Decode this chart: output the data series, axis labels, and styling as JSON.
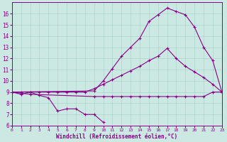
{
  "background_color": "#cce8e2",
  "grid_color": "#aad4cc",
  "line_color": "#880088",
  "xlabel": "Windchill (Refroidissement éolien,°C)",
  "xlim": [
    0,
    23
  ],
  "ylim": [
    6,
    17
  ],
  "xticks": [
    0,
    1,
    2,
    3,
    4,
    5,
    6,
    7,
    8,
    9,
    10,
    11,
    12,
    13,
    14,
    15,
    16,
    17,
    18,
    19,
    20,
    21,
    22,
    23
  ],
  "yticks": [
    6,
    7,
    8,
    9,
    10,
    11,
    12,
    13,
    14,
    15,
    16
  ],
  "curve_dip": {
    "x": [
      0,
      1,
      2,
      3,
      4,
      5,
      6,
      7,
      8,
      9,
      10
    ],
    "y": [
      9.0,
      8.8,
      9.0,
      8.7,
      8.5,
      7.3,
      7.5,
      7.5,
      7.0,
      7.0,
      6.3
    ]
  },
  "curve_flat": {
    "x": [
      0,
      2,
      9,
      10,
      11,
      12,
      13,
      14,
      15,
      16,
      17,
      18,
      19,
      20,
      21,
      22,
      23
    ],
    "y": [
      9.0,
      8.8,
      8.6,
      8.6,
      8.6,
      8.6,
      8.6,
      8.6,
      8.6,
      8.6,
      8.6,
      8.6,
      8.6,
      8.6,
      8.6,
      9.0,
      9.0
    ]
  },
  "curve_linear": {
    "x": [
      0,
      1,
      2,
      3,
      4,
      5,
      6,
      7,
      8,
      9,
      10,
      11,
      12,
      13,
      14,
      15,
      16,
      17,
      18,
      19,
      20,
      21,
      22,
      23
    ],
    "y": [
      9.0,
      9.0,
      9.0,
      9.0,
      9.0,
      9.0,
      9.0,
      9.0,
      9.0,
      9.3,
      9.7,
      10.1,
      10.5,
      10.9,
      11.3,
      11.8,
      12.2,
      12.9,
      12.0,
      11.3,
      10.8,
      10.3,
      9.7,
      9.0
    ]
  },
  "curve_peak": {
    "x": [
      0,
      9,
      10,
      11,
      12,
      13,
      14,
      15,
      16,
      17,
      18,
      19,
      20,
      21,
      22,
      23
    ],
    "y": [
      9.0,
      9.1,
      10.0,
      11.1,
      12.2,
      13.0,
      13.8,
      15.3,
      15.9,
      16.5,
      16.2,
      15.9,
      14.8,
      13.0,
      11.8,
      9.0
    ]
  }
}
